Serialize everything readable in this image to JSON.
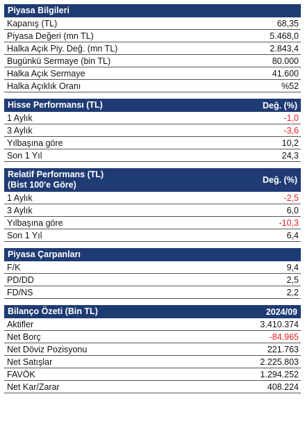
{
  "piyasa_bilgileri": {
    "title": "Piyasa Bilgileri",
    "rows": [
      {
        "label": "Kapanış (TL)",
        "value": "68,35"
      },
      {
        "label": "Piyasa Değeri (mn TL)",
        "value": "5.468,0"
      },
      {
        "label": "Halka Açık Piy. Değ. (mn TL)",
        "value": "2.843,4"
      },
      {
        "label": "Bugünkü Sermaye (bin TL)",
        "value": "80.000"
      },
      {
        "label": "Halka Açık Sermaye",
        "value": "41.600"
      },
      {
        "label": "Halka Açıklık Oranı",
        "value": "%52"
      }
    ]
  },
  "hisse_performansi": {
    "title": "Hisse Performansı (TL)",
    "col_header": "Değ. (%)",
    "rows": [
      {
        "label": "1 Aylık",
        "value": "-1,0",
        "negative": true
      },
      {
        "label": "3 Aylık",
        "value": "-3,6",
        "negative": true
      },
      {
        "label": "Yılbaşına göre",
        "value": "10,2",
        "negative": false
      },
      {
        "label": "Son 1 Yıl",
        "value": "24,3",
        "negative": false
      }
    ]
  },
  "relatif_performans": {
    "title": "Relatif Performans (TL)\n(Bist 100'e Göre)",
    "col_header": "Değ. (%)",
    "rows": [
      {
        "label": "1 Aylık",
        "value": "-2,5",
        "negative": true
      },
      {
        "label": "3 Aylık",
        "value": "6,0",
        "negative": false
      },
      {
        "label": "Yılbaşına göre",
        "value": "-10,3",
        "negative": true
      },
      {
        "label": "Son 1 Yıl",
        "value": "6,4",
        "negative": false
      }
    ]
  },
  "piyasa_carpanlari": {
    "title": "Piyasa Çarpanları",
    "rows": [
      {
        "label": "F/K",
        "value": "9,4"
      },
      {
        "label": "PD/DD",
        "value": "2,5"
      },
      {
        "label": "FD/NS",
        "value": "2,2"
      }
    ]
  },
  "bilanco_ozeti": {
    "title": "Bilanço Özeti (Bin TL)",
    "col_header": "2024/09",
    "rows": [
      {
        "label": "Aktifler",
        "value": "3.410.374",
        "negative": false
      },
      {
        "label": "Net Borç",
        "value": "-84.965",
        "negative": true
      },
      {
        "label": "Net Döviz Pozisyonu",
        "value": "221.763",
        "negative": false
      },
      {
        "label": "Net Satışlar",
        "value": "2.225.803",
        "negative": false
      },
      {
        "label": "FAVÖK",
        "value": "1.294.252",
        "negative": false
      },
      {
        "label": "Net Kar/Zarar",
        "value": "408.224",
        "negative": false
      }
    ]
  },
  "colors": {
    "header_bg": "#1f3b73",
    "negative": "#e8201f"
  }
}
